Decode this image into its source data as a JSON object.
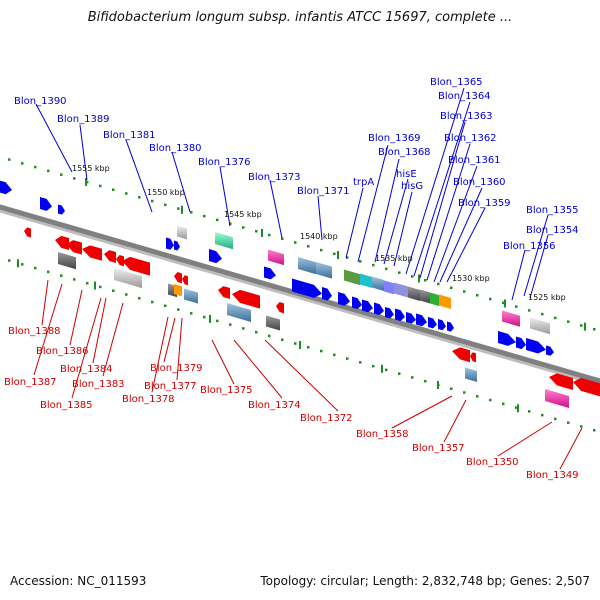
{
  "title": "Bifidobacterium longum subsp. infantis ATCC 15697, complete ...",
  "footer": {
    "accession": "Accession: NC_011593",
    "summary": "Topology: circular; Length: 2,832,748 bp; Genes: 2,507"
  },
  "colors": {
    "forward_gene": "#0000ee",
    "reverse_gene": "#ee0000",
    "backbone": "#808080",
    "tick": "#228b22"
  },
  "scale_labels": [
    "1555 kbp",
    "1550 kbp",
    "1545 kbp",
    "1540 kbp",
    "1535 kbp",
    "1530 kbp",
    "1525 kbp"
  ],
  "forward_gene_labels": [
    "Blon_1390",
    "Blon_1389",
    "Blon_1381",
    "Blon_1380",
    "Blon_1376",
    "Blon_1373",
    "Blon_1371",
    "trpA",
    "Blon_1369",
    "Blon_1368",
    "hisE",
    "hisG",
    "Blon_1365",
    "Blon_1364",
    "Blon_1363",
    "Blon_1362",
    "Blon_1361",
    "Blon_1360",
    "Blon_1359",
    "Blon_1355",
    "Blon_1354",
    "Blon_1356"
  ],
  "reverse_gene_labels": [
    "Blon_1388",
    "Blon_1387",
    "Blon_1386",
    "Blon_1385",
    "Blon_1384",
    "Blon_1383",
    "Blon_1379",
    "Blon_1378",
    "Blon_1377",
    "Blon_1375",
    "Blon_1374",
    "Blon_1372",
    "Blon_1358",
    "Blon_1357",
    "Blon_1350",
    "Blon_1349"
  ]
}
